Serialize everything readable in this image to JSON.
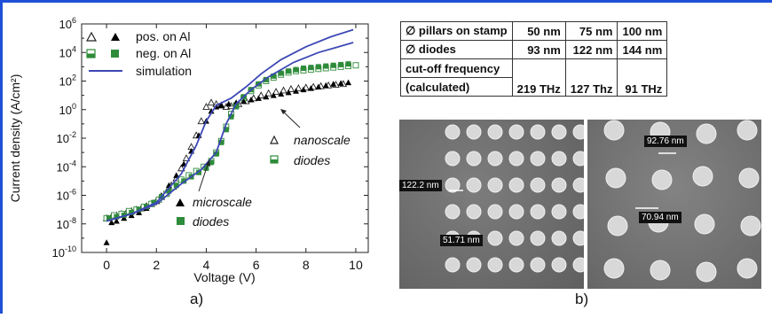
{
  "chart_data": {
    "type": "scatter",
    "title": "",
    "xlabel": "Voltage (V)",
    "ylabel": "Current density (A/cm²)",
    "xlim": [
      -1,
      10.5
    ],
    "ylog": true,
    "ylim_exp": [
      -10,
      6
    ],
    "x_ticks": [
      0,
      2,
      4,
      6,
      8,
      10
    ],
    "y_tick_labels": [
      {
        "base": "10",
        "exp": "6",
        "e": 6
      },
      {
        "base": "10",
        "exp": "4",
        "e": 4
      },
      {
        "base": "10",
        "exp": "2",
        "e": 2
      },
      {
        "base": "10",
        "exp": "0",
        "e": 0
      },
      {
        "base": "10",
        "exp": "-2",
        "e": -2
      },
      {
        "base": "10",
        "exp": "-4",
        "e": -4
      },
      {
        "base": "10",
        "exp": "-6",
        "e": -6
      },
      {
        "base": "10",
        "exp": "-8",
        "e": -8
      },
      {
        "base": "10",
        "exp": "-10",
        "e": -10
      }
    ],
    "legend_position": "top-left",
    "legend": [
      {
        "label": "pos. on Al",
        "kind": "triangles"
      },
      {
        "label": "neg. on Al",
        "kind": "squares"
      },
      {
        "label": "simulation",
        "kind": "line"
      }
    ],
    "annotations": [
      {
        "line1": "nanoscale",
        "line2": "diodes",
        "marker": "hollow"
      },
      {
        "line1": "microscale",
        "line2": "diodes",
        "marker": "filled"
      }
    ],
    "series": [
      {
        "kind": "nano-pos",
        "color": "#222222",
        "marker": "triangle-open",
        "points": [
          [
            0.0,
            -7.6
          ],
          [
            0.2,
            -7.5
          ],
          [
            0.4,
            -7.4
          ],
          [
            0.6,
            -7.3
          ],
          [
            0.8,
            -7.2
          ],
          [
            1.0,
            -7.1
          ],
          [
            1.2,
            -7.0
          ],
          [
            1.4,
            -6.9
          ],
          [
            1.6,
            -6.75
          ],
          [
            1.8,
            -6.6
          ],
          [
            2.0,
            -6.4
          ],
          [
            2.2,
            -6.1
          ],
          [
            2.4,
            -5.8
          ],
          [
            2.6,
            -5.3
          ],
          [
            2.8,
            -4.8
          ],
          [
            3.0,
            -4.1
          ],
          [
            3.2,
            -3.4
          ],
          [
            3.4,
            -2.6
          ],
          [
            3.6,
            -1.8
          ],
          [
            3.8,
            -0.8
          ],
          [
            4.0,
            0.2
          ],
          [
            4.2,
            0.5
          ],
          [
            4.4,
            0.4
          ],
          [
            4.6,
            0.3
          ],
          [
            4.8,
            0.2
          ],
          [
            5.0,
            0.25
          ],
          [
            5.3,
            0.4
          ],
          [
            5.6,
            0.6
          ],
          [
            5.9,
            0.8
          ],
          [
            6.2,
            1.0
          ],
          [
            6.5,
            1.15
          ],
          [
            6.8,
            1.25
          ],
          [
            7.1,
            1.35
          ],
          [
            7.4,
            1.45
          ],
          [
            7.7,
            1.5
          ],
          [
            8.0,
            1.55
          ],
          [
            8.3,
            1.6
          ],
          [
            8.6,
            1.65
          ],
          [
            8.9,
            1.7
          ],
          [
            9.2,
            1.75
          ],
          [
            9.5,
            1.8
          ]
        ]
      },
      {
        "kind": "nano-neg",
        "color": "#2e8b3a",
        "marker": "square-half",
        "points": [
          [
            0.0,
            -7.6
          ],
          [
            0.3,
            -7.4
          ],
          [
            0.6,
            -7.3
          ],
          [
            0.9,
            -7.1
          ],
          [
            1.2,
            -7.0
          ],
          [
            1.5,
            -6.8
          ],
          [
            1.8,
            -6.6
          ],
          [
            2.1,
            -6.3
          ],
          [
            2.4,
            -5.9
          ],
          [
            2.7,
            -5.4
          ],
          [
            3.0,
            -4.9
          ],
          [
            3.3,
            -4.6
          ],
          [
            3.6,
            -4.3
          ],
          [
            3.9,
            -4.0
          ],
          [
            4.2,
            -3.6
          ],
          [
            4.4,
            -3.0
          ],
          [
            4.6,
            -2.2
          ],
          [
            4.8,
            -1.2
          ],
          [
            5.0,
            -0.3
          ],
          [
            5.2,
            0.3
          ],
          [
            5.5,
            0.8
          ],
          [
            5.8,
            1.3
          ],
          [
            6.1,
            1.7
          ],
          [
            6.4,
            2.0
          ],
          [
            6.7,
            2.25
          ],
          [
            7.0,
            2.45
          ],
          [
            7.3,
            2.6
          ],
          [
            7.6,
            2.7
          ],
          [
            7.9,
            2.75
          ],
          [
            8.2,
            2.8
          ],
          [
            8.5,
            2.85
          ],
          [
            8.8,
            2.9
          ],
          [
            9.1,
            2.95
          ],
          [
            9.4,
            3.0
          ],
          [
            9.7,
            3.05
          ],
          [
            10.0,
            3.1
          ]
        ]
      },
      {
        "kind": "micro-pos",
        "color": "#000000",
        "marker": "triangle-filled",
        "points": [
          [
            0.0,
            -9.3
          ],
          [
            0.2,
            -7.9
          ],
          [
            0.4,
            -7.8
          ],
          [
            0.7,
            -7.6
          ],
          [
            1.0,
            -7.4
          ],
          [
            1.3,
            -7.2
          ],
          [
            1.6,
            -6.9
          ],
          [
            1.9,
            -6.5
          ],
          [
            2.2,
            -6.0
          ],
          [
            2.5,
            -5.3
          ],
          [
            2.8,
            -4.6
          ],
          [
            3.1,
            -3.8
          ],
          [
            3.4,
            -2.9
          ],
          [
            3.7,
            -1.8
          ],
          [
            4.0,
            -0.8
          ],
          [
            4.2,
            -0.1
          ],
          [
            4.4,
            0.2
          ],
          [
            4.6,
            0.3
          ],
          [
            4.9,
            0.4
          ],
          [
            5.2,
            0.5
          ],
          [
            5.5,
            0.6
          ],
          [
            5.8,
            0.7
          ],
          [
            6.1,
            0.8
          ],
          [
            6.4,
            0.9
          ],
          [
            6.7,
            1.0
          ],
          [
            7.0,
            1.1
          ],
          [
            7.3,
            1.2
          ],
          [
            7.6,
            1.3
          ],
          [
            7.9,
            1.4
          ],
          [
            8.2,
            1.5
          ],
          [
            8.5,
            1.6
          ],
          [
            8.8,
            1.7
          ],
          [
            9.1,
            1.8
          ],
          [
            9.4,
            1.85
          ],
          [
            9.7,
            1.9
          ]
        ]
      },
      {
        "kind": "micro-neg",
        "color": "#2e8b3a",
        "marker": "square-filled",
        "points": [
          [
            0.1,
            -7.6
          ],
          [
            0.4,
            -7.5
          ],
          [
            0.7,
            -7.4
          ],
          [
            1.0,
            -7.2
          ],
          [
            1.3,
            -7.0
          ],
          [
            1.6,
            -6.8
          ],
          [
            1.9,
            -6.5
          ],
          [
            2.2,
            -6.1
          ],
          [
            2.5,
            -5.7
          ],
          [
            2.8,
            -5.3
          ],
          [
            3.1,
            -5.0
          ],
          [
            3.4,
            -4.7
          ],
          [
            3.7,
            -4.4
          ],
          [
            4.0,
            -4.1
          ],
          [
            4.2,
            -3.7
          ],
          [
            4.4,
            -3.1
          ],
          [
            4.6,
            -2.3
          ],
          [
            4.8,
            -1.4
          ],
          [
            5.0,
            -0.5
          ],
          [
            5.2,
            0.2
          ],
          [
            5.5,
            0.9
          ],
          [
            5.8,
            1.4
          ],
          [
            6.1,
            1.8
          ],
          [
            6.4,
            2.1
          ],
          [
            6.7,
            2.35
          ],
          [
            7.0,
            2.55
          ],
          [
            7.3,
            2.7
          ],
          [
            7.6,
            2.8
          ],
          [
            7.9,
            2.9
          ],
          [
            8.2,
            2.95
          ],
          [
            8.5,
            3.0
          ],
          [
            8.8,
            3.05
          ],
          [
            9.1,
            3.1
          ],
          [
            9.4,
            3.15
          ],
          [
            9.7,
            3.2
          ]
        ]
      },
      {
        "kind": "sim-1",
        "color": "#3d48b5",
        "marker": "line",
        "points": [
          [
            0,
            -7.8
          ],
          [
            1,
            -7.3
          ],
          [
            2,
            -6.5
          ],
          [
            3,
            -4.5
          ],
          [
            3.6,
            -2.5
          ],
          [
            4.0,
            -0.8
          ],
          [
            4.4,
            0.3
          ],
          [
            5.0,
            0.8
          ],
          [
            5.6,
            1.6
          ],
          [
            6.2,
            2.5
          ],
          [
            7.0,
            3.5
          ],
          [
            8.0,
            4.4
          ],
          [
            9.0,
            5.1
          ],
          [
            9.9,
            5.6
          ]
        ]
      },
      {
        "kind": "sim-2",
        "color": "#3d48b5",
        "marker": "line",
        "points": [
          [
            0,
            -7.8
          ],
          [
            1,
            -7.3
          ],
          [
            2,
            -6.6
          ],
          [
            3,
            -5.2
          ],
          [
            3.8,
            -4.2
          ],
          [
            4.4,
            -3.0
          ],
          [
            4.8,
            -1.0
          ],
          [
            5.2,
            0.4
          ],
          [
            5.8,
            1.4
          ],
          [
            6.5,
            2.3
          ],
          [
            7.5,
            3.3
          ],
          [
            8.5,
            4.0
          ],
          [
            9.9,
            4.7
          ]
        ]
      }
    ]
  },
  "table": {
    "rows": [
      {
        "label": "∅ pillars on stamp",
        "c1": "50 nm",
        "c2": "75 nm",
        "c3": "100 nm"
      },
      {
        "label": "∅ diodes",
        "c1": "93 nm",
        "c2": "122 nm",
        "c3": "144 nm"
      }
    ],
    "cutoff": {
      "label_line1": "cut-off frequency",
      "label_line2": "(calculated)",
      "c1": "219 THz",
      "c2": "127 Thz",
      "c3": "91 THz"
    }
  },
  "sem": {
    "left_labels": [
      "122.2 nm",
      "51.71 nm"
    ],
    "right_labels": [
      "92.76 nm",
      "70.94 nm"
    ]
  },
  "panel_labels": {
    "a": "a)",
    "b": "b)"
  }
}
